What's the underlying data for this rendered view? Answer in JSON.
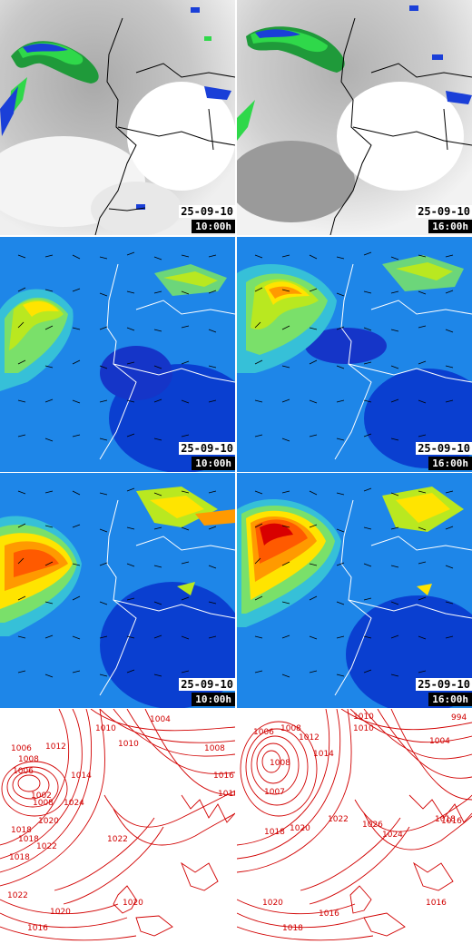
{
  "panels": [
    {
      "id": "sat-1000",
      "kind": "satellite",
      "date": "25-09-10",
      "time": "10:00h"
    },
    {
      "id": "sat-1600",
      "kind": "satellite",
      "date": "25-09-10",
      "time": "16:00h"
    },
    {
      "id": "wind-a-1000",
      "kind": "wind",
      "date": "25-09-10",
      "time": "10:00h"
    },
    {
      "id": "wind-a-1600",
      "kind": "wind",
      "date": "25-09-10",
      "time": "16:00h"
    },
    {
      "id": "wind-b-1000",
      "kind": "wind",
      "date": "25-09-10",
      "time": "10:00h"
    },
    {
      "id": "wind-b-1600",
      "kind": "wind",
      "date": "25-09-10",
      "time": "16:00h"
    },
    {
      "id": "pressure-1000",
      "kind": "pressure"
    },
    {
      "id": "pressure-1600",
      "kind": "pressure"
    }
  ],
  "isobars_left": [
    "1006",
    "1008",
    "1010",
    "1012",
    "1014",
    "1016",
    "1018",
    "1020",
    "1022",
    "1024",
    "1008",
    "1010",
    "1016",
    "1018",
    "1020",
    "1022",
    "1016",
    "1018",
    "1020",
    "1022",
    "1008",
    "1006",
    "1004",
    "1002"
  ],
  "isobars_right": [
    "1006",
    "1008",
    "1010",
    "1012",
    "1014",
    "1016",
    "1018",
    "1020",
    "1022",
    "1024",
    "1016",
    "1018",
    "1020",
    "1008",
    "1010",
    "1004",
    "994",
    "1007",
    "1018",
    "1016",
    "1026"
  ],
  "colors": {
    "isobar": "#d10000",
    "coast": "#ffffff",
    "sat_coast": "#000000"
  }
}
